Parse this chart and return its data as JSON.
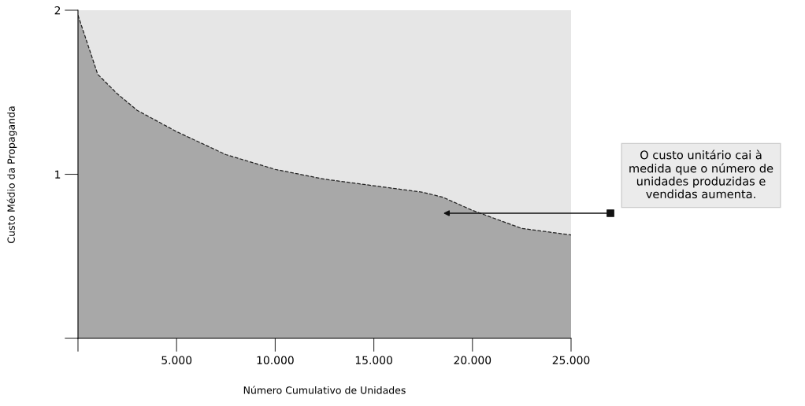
{
  "chart_data": {
    "type": "area",
    "xlabel": "Número Cumulativo de Unidades",
    "ylabel": "Custo Médio da Propaganda",
    "x": [
      0,
      1000,
      2000,
      3000,
      5000,
      7500,
      10000,
      12500,
      15000,
      17500,
      18500,
      20000,
      22500,
      25000
    ],
    "series": [
      {
        "color": "#a8a8a8",
        "values": [
          1.97,
          1.61,
          1.49,
          1.39,
          1.26,
          1.12,
          1.03,
          0.97,
          0.93,
          0.89,
          0.86,
          0.78,
          0.67,
          0.63
        ]
      }
    ],
    "line_style": "dashed",
    "xlim": [
      0,
      25000
    ],
    "ylim": [
      0,
      2
    ],
    "xticks": [
      {
        "value": 0,
        "label": null
      },
      {
        "value": 5000,
        "label": "5.000"
      },
      {
        "value": 10000,
        "label": "10.000"
      },
      {
        "value": 15000,
        "label": "15.000"
      },
      {
        "value": 20000,
        "label": "20.000"
      },
      {
        "value": 25000,
        "label": "25.000"
      }
    ],
    "yticks": [
      {
        "value": 0,
        "label": null
      },
      1,
      2
    ],
    "grid": false,
    "annotations": [
      "O custo unitário cai à\nmedida que o número de\nunidades produzidas e\nvendidas aumenta."
    ]
  }
}
